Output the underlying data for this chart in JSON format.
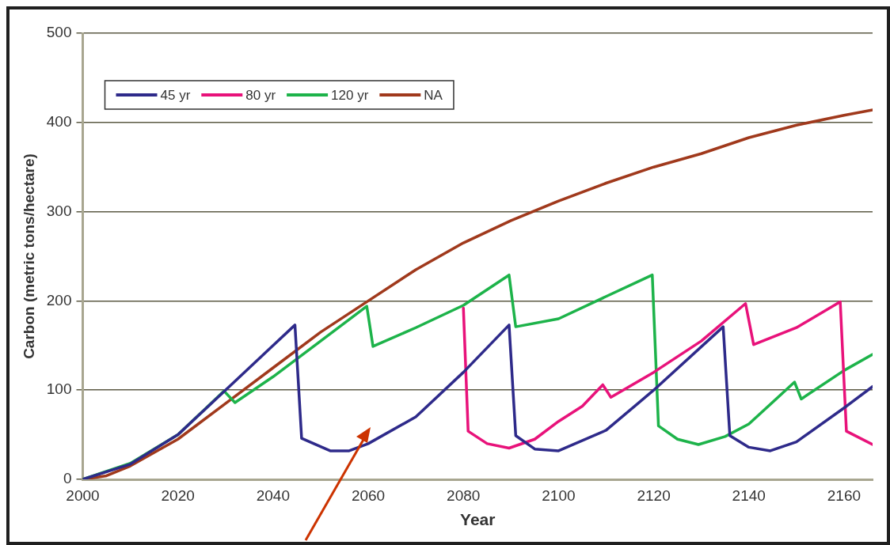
{
  "chart_data": {
    "type": "line",
    "xlabel": "Year",
    "ylabel": "Carbon (metric tons/hectare)",
    "xlim": [
      2000,
      2166
    ],
    "xticks": [
      2000,
      2020,
      2040,
      2060,
      2080,
      2100,
      2120,
      2140,
      2160
    ],
    "ylim": [
      0,
      500
    ],
    "yticks": [
      0,
      100,
      200,
      300,
      400,
      500
    ],
    "grid": "y",
    "legend": "top left",
    "marker": "none",
    "line_style": "solid",
    "series": [
      {
        "name": "45 yr",
        "color": "#2e2a8a",
        "x": [
          2000,
          2010,
          2020,
          2030,
          2040,
          2044.6,
          2046,
          2052,
          2056,
          2060,
          2070,
          2080,
          2089.6,
          2091,
          2095,
          2100,
          2110,
          2120,
          2134.6,
          2136,
          2140,
          2144.5,
          2150,
          2160,
          2166
        ],
        "values": [
          0,
          17,
          50,
          100,
          150,
          173,
          46,
          32,
          32,
          40,
          70,
          120,
          173,
          49,
          34,
          32,
          55,
          100,
          171,
          49,
          36,
          32,
          42,
          80,
          104
        ]
      },
      {
        "name": "80 yr",
        "color": "#e8127a",
        "x": [
          2080,
          2081,
          2085,
          2089.6,
          2095,
          2100,
          2105,
          2109.3,
          2111,
          2120,
          2130,
          2139.3,
          2141,
          2150,
          2159.2,
          2160.5,
          2166
        ],
        "values": [
          192,
          54,
          40,
          35,
          45,
          65,
          82,
          106,
          92,
          120,
          155,
          197,
          151,
          170,
          199,
          54,
          39
        ]
      },
      {
        "name": "120 yr",
        "color": "#1db34a",
        "x": [
          2000,
          2010,
          2020,
          2029.7,
          2032,
          2040,
          2050,
          2059.7,
          2061,
          2070,
          2080,
          2089.6,
          2091,
          2100,
          2110,
          2119.7,
          2121,
          2125,
          2129.4,
          2135,
          2140,
          2149.6,
          2151,
          2160,
          2166
        ],
        "values": [
          0,
          18,
          50,
          99,
          86,
          115,
          155,
          194,
          149,
          170,
          195,
          229,
          171,
          180,
          205,
          229,
          60,
          45,
          39,
          48,
          62,
          109,
          90,
          122,
          140
        ]
      },
      {
        "name": "NA",
        "color": "#a0391c",
        "x": [
          2000,
          2005,
          2010,
          2020,
          2030,
          2040,
          2050,
          2060,
          2070,
          2080,
          2090,
          2100,
          2110,
          2120,
          2130,
          2140,
          2150,
          2160,
          2166
        ],
        "values": [
          0,
          4,
          15,
          45,
          85,
          125,
          165,
          200,
          235,
          265,
          290,
          312,
          332,
          350,
          365,
          383,
          397,
          408,
          414
        ]
      }
    ]
  }
}
